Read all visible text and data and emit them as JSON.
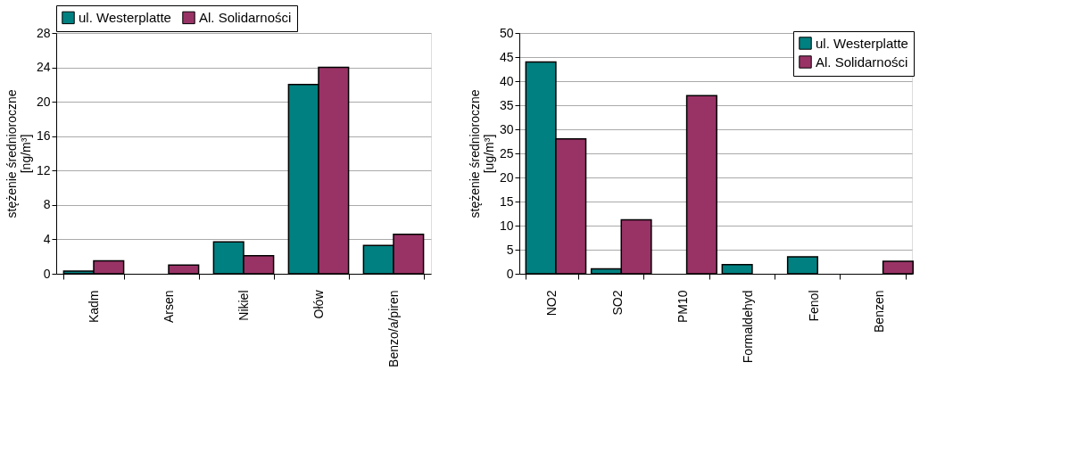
{
  "chart_data": [
    {
      "type": "bar",
      "ylabel": "stężenie średnioroczne\n[ng/m³]",
      "categories": [
        "Kadm",
        "Arsen",
        "Nikiel",
        "Ołów",
        "Benzo/a/piren"
      ],
      "series": [
        {
          "name": "ul. Westerplatte",
          "color": "#008080",
          "values": [
            0.3,
            null,
            3.7,
            22,
            3.3
          ]
        },
        {
          "name": "Al. Solidarności",
          "color": "#993366",
          "values": [
            1.5,
            1.0,
            2.1,
            24,
            4.6
          ]
        }
      ],
      "ylim": [
        0,
        28
      ],
      "yticks": [
        0,
        4,
        8,
        12,
        16,
        20,
        24,
        28
      ],
      "grid": "y",
      "legend": "top"
    },
    {
      "type": "bar",
      "ylabel": "stężenie średnioroczne\n[ug/m³]",
      "categories": [
        "NO2",
        "SO2",
        "PM10",
        "Formaldehyd",
        "Fenol",
        "Benzen"
      ],
      "series": [
        {
          "name": "ul. Westerplatte",
          "color": "#008080",
          "values": [
            44,
            1,
            null,
            1.9,
            3.5,
            null
          ]
        },
        {
          "name": "Al. Solidarności",
          "color": "#993366",
          "values": [
            28,
            11.2,
            37,
            null,
            null,
            2.6
          ]
        }
      ],
      "ylim": [
        0,
        50
      ],
      "yticks": [
        0,
        5,
        10,
        15,
        20,
        25,
        30,
        35,
        40,
        45,
        50
      ],
      "grid": "y",
      "legend": "top right"
    }
  ]
}
